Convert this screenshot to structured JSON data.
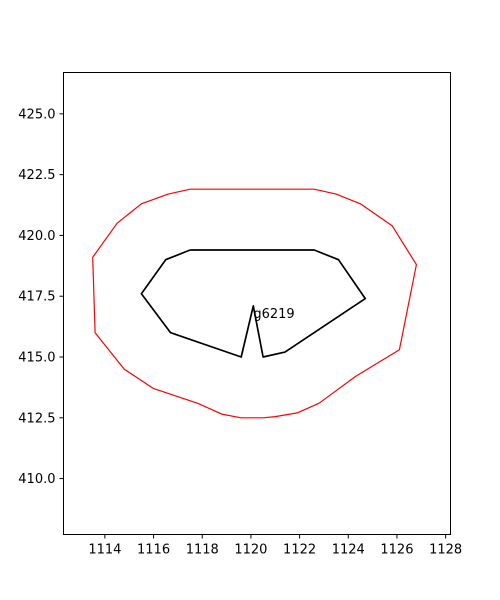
{
  "chart_data": {
    "type": "line",
    "title": "",
    "xlabel": "",
    "ylabel": "",
    "xlim": [
      1112.3,
      1128.2
    ],
    "ylim": [
      407.7,
      426.7
    ],
    "grid": false,
    "legend": "none",
    "xticks": [
      1114,
      1116,
      1118,
      1120,
      1122,
      1124,
      1126,
      1128
    ],
    "xtick_labels": [
      "1114",
      "1116",
      "1118",
      "1120",
      "1122",
      "1124",
      "1126",
      "1128"
    ],
    "yticks": [
      410.0,
      412.5,
      415.0,
      417.5,
      420.0,
      422.5,
      425.0
    ],
    "ytick_labels": [
      "410.0",
      "412.5",
      "415.0",
      "417.5",
      "420.0",
      "422.5",
      "425.0"
    ],
    "series": [
      {
        "color": "#ff0000",
        "x": [
          1117.5,
          1122.6,
          1123.5,
          1124.5,
          1125.8,
          1126.8,
          1126.1,
          1124.3,
          1122.8,
          1121.9,
          1121.0,
          1120.5,
          1119.6,
          1118.8,
          1117.8,
          1116.0,
          1114.8,
          1113.6,
          1113.5,
          1114.5,
          1115.5,
          1116.6,
          1117.5
        ],
        "y": [
          421.9,
          421.9,
          421.7,
          421.3,
          420.4,
          418.8,
          415.3,
          414.2,
          413.1,
          412.7,
          412.55,
          412.5,
          412.5,
          412.65,
          413.1,
          413.7,
          414.5,
          416.0,
          419.1,
          420.5,
          421.3,
          421.7,
          421.9
        ]
      },
      {
        "color": "#000000",
        "x": [
          1117.5,
          1122.6,
          1123.6,
          1124.7,
          1121.4,
          1120.5,
          1120.1,
          1119.6,
          1116.7,
          1115.5,
          1116.5,
          1117.5
        ],
        "y": [
          419.4,
          419.4,
          419.0,
          417.4,
          415.2,
          415.0,
          417.1,
          415.0,
          416.0,
          417.6,
          419.0,
          419.4
        ]
      }
    ],
    "annotations": [
      {
        "text": "g6219",
        "x": 1120.1,
        "y": 416.8
      }
    ]
  }
}
